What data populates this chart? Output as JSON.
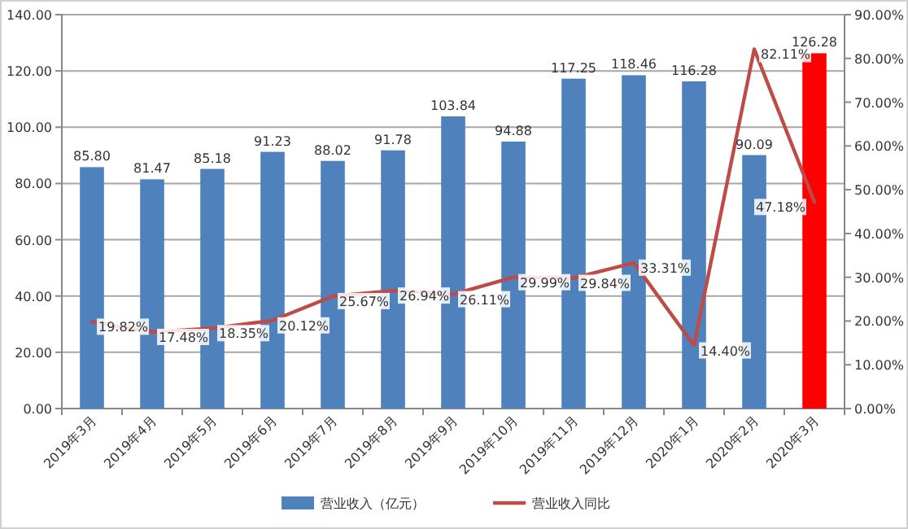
{
  "chart_data": {
    "type": "bar",
    "categories": [
      "2019年3月",
      "2019年4月",
      "2019年5月",
      "2019年6月",
      "2019年7月",
      "2019年8月",
      "2019年9月",
      "2019年10月",
      "2019年11月",
      "2019年12月",
      "2020年1月",
      "2020年2月",
      "2020年3月"
    ],
    "series": [
      {
        "name": "营业收入（亿元）",
        "colors": [
          "#4f81bd",
          "#4f81bd",
          "#4f81bd",
          "#4f81bd",
          "#4f81bd",
          "#4f81bd",
          "#4f81bd",
          "#4f81bd",
          "#4f81bd",
          "#4f81bd",
          "#4f81bd",
          "#4f81bd",
          "#ff0000"
        ],
        "values": [
          85.8,
          81.47,
          85.18,
          91.23,
          88.02,
          91.78,
          103.84,
          94.88,
          117.25,
          118.46,
          116.28,
          90.09,
          126.28
        ],
        "value_labels": [
          "85.80",
          "81.47",
          "85.18",
          "91.23",
          "88.02",
          "91.78",
          "103.84",
          "94.88",
          "117.25",
          "118.46",
          "116.28",
          "90.09",
          "126.28"
        ]
      },
      {
        "name": "营业收入同比",
        "type": "line",
        "axis": "y2",
        "color": "#be4b48",
        "values": [
          19.82,
          17.48,
          18.35,
          20.12,
          25.67,
          26.94,
          26.11,
          29.99,
          29.84,
          33.31,
          14.4,
          82.11,
          47.18
        ],
        "value_labels": [
          "19.82%",
          "17.48%",
          "18.35%",
          "20.12%",
          "25.67%",
          "26.94%",
          "26.11%",
          "29.99%",
          "29.84%",
          "33.31%",
          "14.40%",
          "82.11%",
          "47.18%"
        ]
      }
    ],
    "ylim": [
      0,
      140
    ],
    "yticks": [
      {
        "value": 0,
        "label": "0.00"
      },
      {
        "value": 20,
        "label": "20.00"
      },
      {
        "value": 40,
        "label": "40.00"
      },
      {
        "value": 60,
        "label": "60.00"
      },
      {
        "value": 80,
        "label": "80.00"
      },
      {
        "value": 100,
        "label": "100.00"
      },
      {
        "value": 120,
        "label": "120.00"
      },
      {
        "value": 140,
        "label": "140.00"
      }
    ],
    "y2lim": [
      0,
      90
    ],
    "y2ticks": [
      {
        "value": 0,
        "label": "0.00%"
      },
      {
        "value": 10,
        "label": "10.00%"
      },
      {
        "value": 20,
        "label": "20.00%"
      },
      {
        "value": 30,
        "label": "30.00%"
      },
      {
        "value": 40,
        "label": "40.00%"
      },
      {
        "value": 50,
        "label": "50.00%"
      },
      {
        "value": 60,
        "label": "60.00%"
      },
      {
        "value": 70,
        "label": "70.00%"
      },
      {
        "value": 80,
        "label": "80.00%"
      },
      {
        "value": 90,
        "label": "90.00%"
      }
    ],
    "grid": "y",
    "legend": "bottom",
    "marker": "none"
  }
}
